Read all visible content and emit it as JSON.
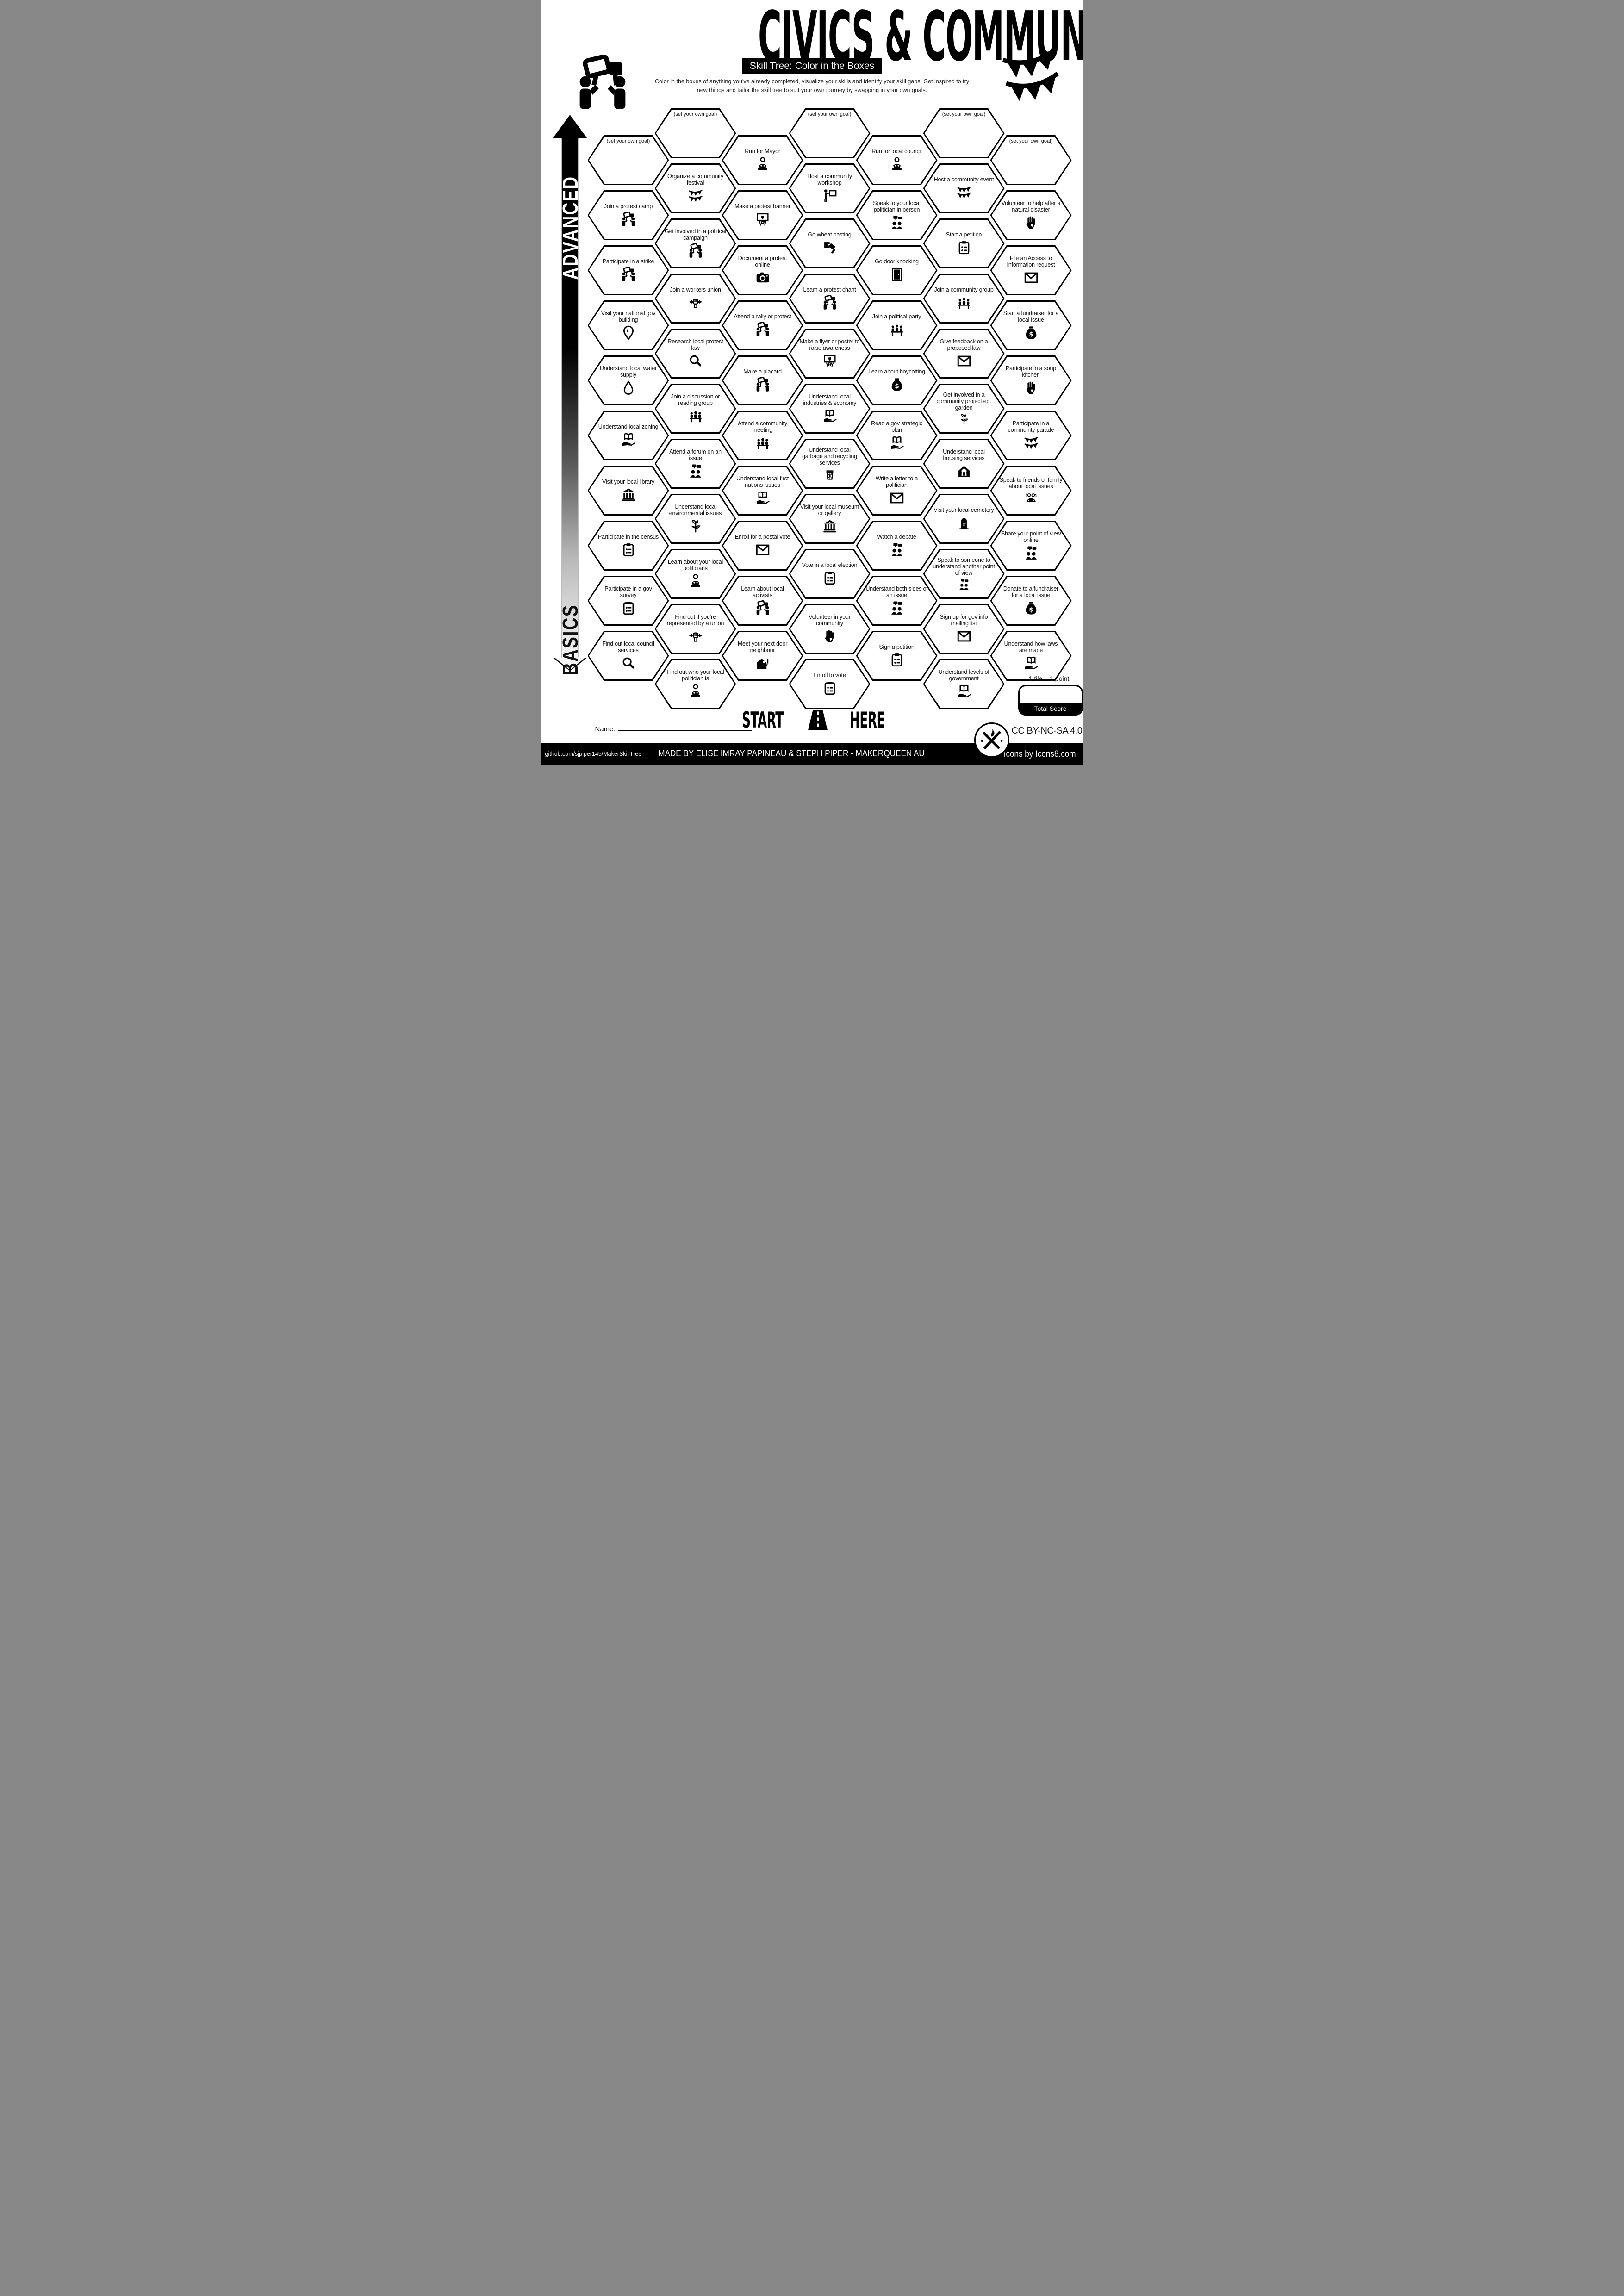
{
  "header": {
    "title": "CIVICS & COMMUNITY",
    "subtitle": "Skill Tree: Color in the Boxes",
    "description": "Color in the boxes of anything you've already completed, visualize your skills and identify your skill gaps.  Get inspired to try new things and tailor the skill tree to suit your own journey by swapping in your own goals."
  },
  "decor": {
    "top_left_icon": "protest-people",
    "top_right_icon": "bunting"
  },
  "axis": {
    "advanced": "ADVANCED",
    "basics": "BASICS"
  },
  "columns": [
    {
      "tiles": [
        {
          "label": "(set your own goal)",
          "goal": true
        },
        {
          "label": "Join a protest camp",
          "icon": "protest-people"
        },
        {
          "label": "Participate in a strike",
          "icon": "protest-people"
        },
        {
          "label": "Visit your national gov building",
          "icon": "location-pin"
        },
        {
          "label": "Understand local water supply",
          "icon": "water-drop"
        },
        {
          "label": "Understand local zoning",
          "icon": "book-hand"
        },
        {
          "label": "Visit your local library",
          "icon": "bank-building"
        },
        {
          "label": "Participate in the census",
          "icon": "clipboard"
        },
        {
          "label": "Participate in a gov survey",
          "icon": "clipboard"
        },
        {
          "label": "Find out local council services",
          "icon": "magnifier"
        }
      ]
    },
    {
      "tiles": [
        {
          "label": "(set your own goal)",
          "goal": true
        },
        {
          "label": "Organize a community festival",
          "icon": "bunting"
        },
        {
          "label": "Get involved in a political campaign",
          "icon": "protest-people"
        },
        {
          "label": "Join a workers union",
          "icon": "wrench-fist"
        },
        {
          "label": "Research local protest law",
          "icon": "magnifier"
        },
        {
          "label": "Join a discussion or reading group",
          "icon": "people-table"
        },
        {
          "label": "Attend a forum on an issue",
          "icon": "speech-people"
        },
        {
          "label": "Understand local environmental issues",
          "icon": "plant"
        },
        {
          "label": "Learn about your local politicians",
          "icon": "podium-person"
        },
        {
          "label": "Find out if you're represented by a union",
          "icon": "wrench-fist"
        },
        {
          "label": "Find out who your local politician is",
          "icon": "podium-person"
        }
      ]
    },
    {
      "tiles": [
        {
          "label": "Run for Mayor",
          "icon": "podium-person"
        },
        {
          "label": "Make a protest banner",
          "icon": "banner-heart"
        },
        {
          "label": "Document a protest online",
          "icon": "camera"
        },
        {
          "label": "Attend a rally or protest",
          "icon": "protest-people"
        },
        {
          "label": "Make a placard",
          "icon": "protest-people"
        },
        {
          "label": "Attend a community meeting",
          "icon": "people-table"
        },
        {
          "label": "Understand local first nations issues",
          "icon": "book-hand"
        },
        {
          "label": "Enroll for a postal vote",
          "icon": "envelope"
        },
        {
          "label": "Learn about local activists",
          "icon": "protest-people"
        },
        {
          "label": "Meet your next door neighbour",
          "icon": "house-person"
        }
      ]
    },
    {
      "tiles": [
        {
          "label": "(set your own goal)",
          "goal": true
        },
        {
          "label": "Host a community workshop",
          "icon": "workshop"
        },
        {
          "label": "Go wheat pasting",
          "icon": "paste-brush"
        },
        {
          "label": "Learn a protest chant",
          "icon": "protest-people"
        },
        {
          "label": "Make a flyer or poster to raise awareness",
          "icon": "banner-heart"
        },
        {
          "label": "Understand local industries & economy",
          "icon": "book-hand"
        },
        {
          "label": "Understand local garbage and recycling services",
          "icon": "trash-bin"
        },
        {
          "label": "Visit your local museum or gallery",
          "icon": "bank-building"
        },
        {
          "label": "Vote in a local election",
          "icon": "clipboard"
        },
        {
          "label": "Volunteer in your community",
          "icon": "hand-heart"
        },
        {
          "label": "Enroll to vote",
          "icon": "clipboard"
        }
      ]
    },
    {
      "tiles": [
        {
          "label": "Run for local council",
          "icon": "podium-person"
        },
        {
          "label": "Speak to your local politician in person",
          "icon": "speech-people"
        },
        {
          "label": "Go door knocking",
          "icon": "door"
        },
        {
          "label": "Join a political party",
          "icon": "people-table"
        },
        {
          "label": "Learn about boycotting",
          "icon": "money-bag"
        },
        {
          "label": "Read a gov strategic plan",
          "icon": "book-hand"
        },
        {
          "label": "Write a letter to a politician",
          "icon": "envelope"
        },
        {
          "label": "Watch a debate",
          "icon": "speech-people"
        },
        {
          "label": "Understand both sides of an issue",
          "icon": "speech-people"
        },
        {
          "label": "Sign a petition",
          "icon": "clipboard"
        }
      ]
    },
    {
      "tiles": [
        {
          "label": "(set your own goal)",
          "goal": true
        },
        {
          "label": "Host a community event",
          "icon": "bunting"
        },
        {
          "label": "Start a petition",
          "icon": "clipboard"
        },
        {
          "label": "Join a community group",
          "icon": "people-table"
        },
        {
          "label": "Give feedback on a proposed law",
          "icon": "envelope"
        },
        {
          "label": "Get involved in a community project eg. garden",
          "icon": "plant"
        },
        {
          "label": "Understand local housing services",
          "icon": "house"
        },
        {
          "label": "Visit your local cemetery",
          "icon": "grave"
        },
        {
          "label": "Speak to someone to understand another point of view",
          "icon": "speech-people"
        },
        {
          "label": "Sign up for gov info mailing list",
          "icon": "envelope"
        },
        {
          "label": "Understand levels of government",
          "icon": "book-hand"
        }
      ]
    },
    {
      "tiles": [
        {
          "label": "(set your own goal)",
          "goal": true
        },
        {
          "label": "Volunteer to help after a natural disaster",
          "icon": "hand-heart"
        },
        {
          "label": "File an Access to Information request",
          "icon": "envelope"
        },
        {
          "label": "Start a fundraiser for a local issue",
          "icon": "money-bag"
        },
        {
          "label": "Participate in a soup kitchen",
          "icon": "hand-heart"
        },
        {
          "label": "Participate in a community parade",
          "icon": "bunting"
        },
        {
          "label": "Speak to friends or family about local issues",
          "icon": "friends-laptop"
        },
        {
          "label": "Share your point of view online",
          "icon": "speech-people"
        },
        {
          "label": "Donate to a fundraiser for a local issue",
          "icon": "money-bag"
        },
        {
          "label": "Understand how laws are made",
          "icon": "book-hand"
        }
      ]
    }
  ],
  "start": {
    "start_label": "START",
    "here_label": "HERE",
    "icon": "road"
  },
  "score": {
    "note": "1 tile = 1 point",
    "label": "Total Score"
  },
  "name": {
    "label": "Name:"
  },
  "license": {
    "text": "CC BY-NC-SA 4.0",
    "logo_icon": "makerqueen-logo"
  },
  "footer": {
    "repo": "github.com/sjpiper145/MakerSkillTree",
    "credit": "MADE BY ELISE IMRAY PAPINEAU & STEPH PIPER  -  MAKERQUEEN AU",
    "icons_credit": "Icons by Icons8.com"
  }
}
